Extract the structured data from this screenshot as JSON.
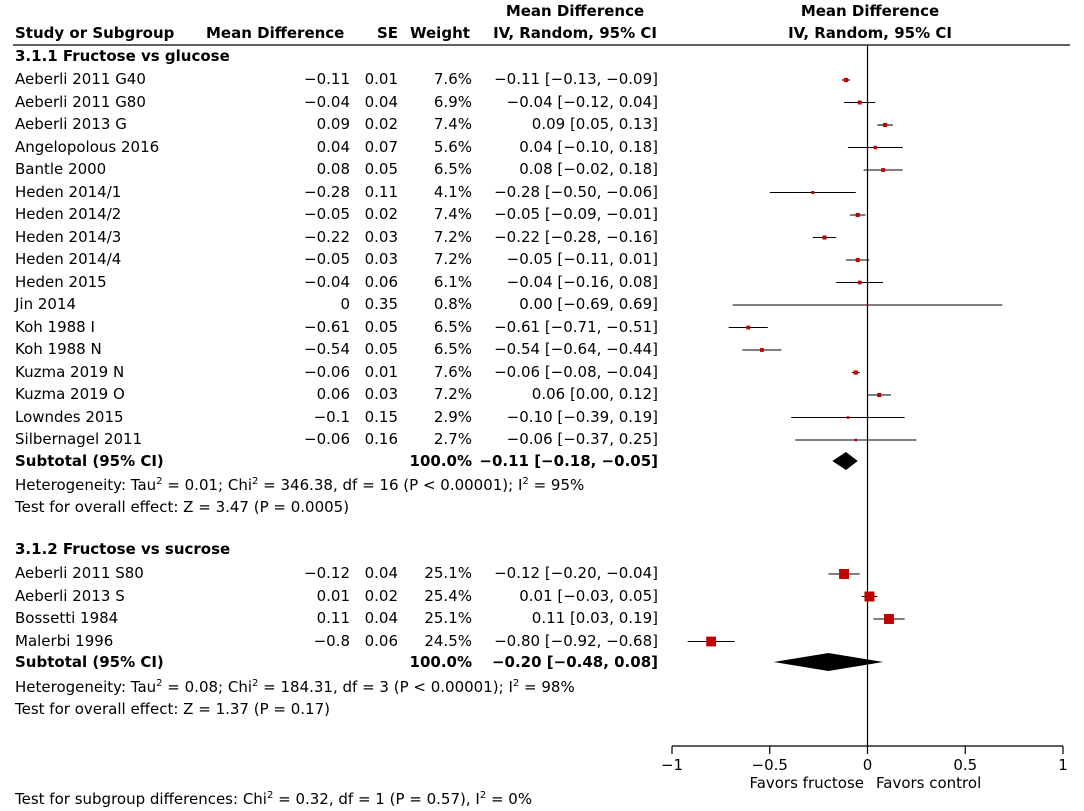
{
  "header": {
    "study": "Study or Subgroup",
    "md": "Mean Difference",
    "se": "SE",
    "weight": "Weight",
    "ci_line1": "Mean Difference",
    "ci_line2": "IV, Random, 95% CI",
    "plot_line1": "Mean Difference",
    "plot_line2": "IV, Random, 95% CI"
  },
  "groups": [
    {
      "title": "3.1.1 Fructose vs glucose",
      "studies": [
        {
          "name": "Aeberli 2011 G40",
          "md": "−0.11",
          "se": "0.01",
          "weight": "7.6%",
          "ci": "−0.11 [−0.13, −0.09]"
        },
        {
          "name": "Aeberli 2011 G80",
          "md": "−0.04",
          "se": "0.04",
          "weight": "6.9%",
          "ci": "−0.04 [−0.12, 0.04]"
        },
        {
          "name": "Aeberli 2013 G",
          "md": "0.09",
          "se": "0.02",
          "weight": "7.4%",
          "ci": "0.09 [0.05, 0.13]"
        },
        {
          "name": "Angelopolous 2016",
          "md": "0.04",
          "se": "0.07",
          "weight": "5.6%",
          "ci": "0.04 [−0.10, 0.18]"
        },
        {
          "name": "Bantle 2000",
          "md": "0.08",
          "se": "0.05",
          "weight": "6.5%",
          "ci": "0.08 [−0.02, 0.18]"
        },
        {
          "name": "Heden 2014/1",
          "md": "−0.28",
          "se": "0.11",
          "weight": "4.1%",
          "ci": "−0.28 [−0.50, −0.06]"
        },
        {
          "name": "Heden 2014/2",
          "md": "−0.05",
          "se": "0.02",
          "weight": "7.4%",
          "ci": "−0.05 [−0.09, −0.01]"
        },
        {
          "name": "Heden 2014/3",
          "md": "−0.22",
          "se": "0.03",
          "weight": "7.2%",
          "ci": "−0.22 [−0.28, −0.16]"
        },
        {
          "name": "Heden 2014/4",
          "md": "−0.05",
          "se": "0.03",
          "weight": "7.2%",
          "ci": "−0.05 [−0.11, 0.01]"
        },
        {
          "name": "Heden 2015",
          "md": "−0.04",
          "se": "0.06",
          "weight": "6.1%",
          "ci": "−0.04 [−0.16, 0.08]"
        },
        {
          "name": "Jin 2014",
          "md": "0",
          "se": "0.35",
          "weight": "0.8%",
          "ci": "0.00 [−0.69, 0.69]"
        },
        {
          "name": "Koh 1988 I",
          "md": "−0.61",
          "se": "0.05",
          "weight": "6.5%",
          "ci": "−0.61 [−0.71, −0.51]"
        },
        {
          "name": "Koh 1988 N",
          "md": "−0.54",
          "se": "0.05",
          "weight": "6.5%",
          "ci": "−0.54 [−0.64, −0.44]"
        },
        {
          "name": "Kuzma 2019 N",
          "md": "−0.06",
          "se": "0.01",
          "weight": "7.6%",
          "ci": "−0.06 [−0.08, −0.04]"
        },
        {
          "name": "Kuzma 2019 O",
          "md": "0.06",
          "se": "0.03",
          "weight": "7.2%",
          "ci": "0.06 [0.00, 0.12]"
        },
        {
          "name": "Lowndes 2015",
          "md": "−0.1",
          "se": "0.15",
          "weight": "2.9%",
          "ci": "−0.10 [−0.39, 0.19]"
        },
        {
          "name": "Silbernagel 2011",
          "md": "−0.06",
          "se": "0.16",
          "weight": "2.7%",
          "ci": "−0.06 [−0.37, 0.25]"
        }
      ],
      "subtotal": {
        "label": "Subtotal (95% CI)",
        "weight": "100.0%",
        "ci": "−0.11 [−0.18, −0.05]"
      },
      "het_a": "Heterogeneity: Tau",
      "het_b": " = 0.01; Chi",
      "het_c": " = 346.38, df = 16 (P < 0.00001); I",
      "het_d": " = 95%",
      "overall": "Test for overall effect: Z = 3.47 (P = 0.0005)"
    },
    {
      "title": "3.1.2 Fructose vs sucrose",
      "studies": [
        {
          "name": "Aeberli 2011 S80",
          "md": "−0.12",
          "se": "0.04",
          "weight": "25.1%",
          "ci": "−0.12 [−0.20, −0.04]"
        },
        {
          "name": "Aeberli 2013 S",
          "md": "0.01",
          "se": "0.02",
          "weight": "25.4%",
          "ci": "0.01 [−0.03, 0.05]"
        },
        {
          "name": "Bossetti 1984",
          "md": "0.11",
          "se": "0.04",
          "weight": "25.1%",
          "ci": "0.11 [0.03, 0.19]"
        },
        {
          "name": "Malerbi 1996",
          "md": "−0.8",
          "se": "0.06",
          "weight": "24.5%",
          "ci": "−0.80 [−0.92, −0.68]"
        }
      ],
      "subtotal": {
        "label": "Subtotal (95% CI)",
        "weight": "100.0%",
        "ci": "−0.20 [−0.48, 0.08]"
      },
      "het_a": "Heterogeneity: Tau",
      "het_b": " = 0.08; Chi",
      "het_c": " = 184.31, df = 3 (P < 0.00001); I",
      "het_d": " = 98%",
      "overall": "Test for overall effect: Z = 1.37 (P = 0.17)"
    }
  ],
  "footer": {
    "sub_a": "Test for subgroup differences: Chi",
    "sub_b": " = 0.32, df = 1 (P = 0.57), I",
    "sub_c": " = 0%",
    "superscript": "2"
  },
  "axis": {
    "favors_left": "Favors fructose",
    "favors_right": "Favors control"
  },
  "colors": {
    "marker": "#c00000",
    "line": "#000000"
  },
  "chart_data": {
    "type": "forest",
    "title": "Mean Difference IV, Random, 95% CI",
    "xlabel_left": "Favors fructose",
    "xlabel_right": "Favors control",
    "xlim": [
      -1,
      1
    ],
    "xticks": [
      -1,
      -0.5,
      0,
      0.5,
      1
    ],
    "xtick_labels": [
      "−1",
      "−0.5",
      "0",
      "0.5",
      "1"
    ],
    "reference_line": 0,
    "groups": [
      {
        "name": "3.1.1 Fructose vs glucose",
        "points": [
          {
            "study": "Aeberli 2011 G40",
            "est": -0.11,
            "lo": -0.13,
            "hi": -0.09,
            "weight": 7.6
          },
          {
            "study": "Aeberli 2011 G80",
            "est": -0.04,
            "lo": -0.12,
            "hi": 0.04,
            "weight": 6.9
          },
          {
            "study": "Aeberli 2013 G",
            "est": 0.09,
            "lo": 0.05,
            "hi": 0.13,
            "weight": 7.4
          },
          {
            "study": "Angelopolous 2016",
            "est": 0.04,
            "lo": -0.1,
            "hi": 0.18,
            "weight": 5.6
          },
          {
            "study": "Bantle 2000",
            "est": 0.08,
            "lo": -0.02,
            "hi": 0.18,
            "weight": 6.5
          },
          {
            "study": "Heden 2014/1",
            "est": -0.28,
            "lo": -0.5,
            "hi": -0.06,
            "weight": 4.1
          },
          {
            "study": "Heden 2014/2",
            "est": -0.05,
            "lo": -0.09,
            "hi": -0.01,
            "weight": 7.4
          },
          {
            "study": "Heden 2014/3",
            "est": -0.22,
            "lo": -0.28,
            "hi": -0.16,
            "weight": 7.2
          },
          {
            "study": "Heden 2014/4",
            "est": -0.05,
            "lo": -0.11,
            "hi": 0.01,
            "weight": 7.2
          },
          {
            "study": "Heden 2015",
            "est": -0.04,
            "lo": -0.16,
            "hi": 0.08,
            "weight": 6.1
          },
          {
            "study": "Jin 2014",
            "est": 0.0,
            "lo": -0.69,
            "hi": 0.69,
            "weight": 0.8
          },
          {
            "study": "Koh 1988 I",
            "est": -0.61,
            "lo": -0.71,
            "hi": -0.51,
            "weight": 6.5
          },
          {
            "study": "Koh 1988 N",
            "est": -0.54,
            "lo": -0.64,
            "hi": -0.44,
            "weight": 6.5
          },
          {
            "study": "Kuzma 2019 N",
            "est": -0.06,
            "lo": -0.08,
            "hi": -0.04,
            "weight": 7.6
          },
          {
            "study": "Kuzma 2019 O",
            "est": 0.06,
            "lo": 0.0,
            "hi": 0.12,
            "weight": 7.2
          },
          {
            "study": "Lowndes 2015",
            "est": -0.1,
            "lo": -0.39,
            "hi": 0.19,
            "weight": 2.9
          },
          {
            "study": "Silbernagel 2011",
            "est": -0.06,
            "lo": -0.37,
            "hi": 0.25,
            "weight": 2.7
          }
        ],
        "subtotal": {
          "est": -0.11,
          "lo": -0.18,
          "hi": -0.05
        }
      },
      {
        "name": "3.1.2 Fructose vs sucrose",
        "points": [
          {
            "study": "Aeberli 2011 S80",
            "est": -0.12,
            "lo": -0.2,
            "hi": -0.04,
            "weight": 25.1
          },
          {
            "study": "Aeberli 2013 S",
            "est": 0.01,
            "lo": -0.03,
            "hi": 0.05,
            "weight": 25.4
          },
          {
            "study": "Bossetti 1984",
            "est": 0.11,
            "lo": 0.03,
            "hi": 0.19,
            "weight": 25.1
          },
          {
            "study": "Malerbi 1996",
            "est": -0.8,
            "lo": -0.92,
            "hi": -0.68,
            "weight": 24.5
          }
        ],
        "subtotal": {
          "est": -0.2,
          "lo": -0.48,
          "hi": 0.08
        }
      }
    ]
  }
}
